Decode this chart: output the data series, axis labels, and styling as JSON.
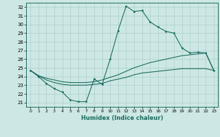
{
  "xlabel": "Humidex (Indice chaleur)",
  "ylabel": "",
  "xlim": [
    -0.5,
    23.5
  ],
  "ylim": [
    20.5,
    32.5
  ],
  "yticks": [
    21,
    22,
    23,
    24,
    25,
    26,
    27,
    28,
    29,
    30,
    31,
    32
  ],
  "xticks": [
    0,
    1,
    2,
    3,
    4,
    5,
    6,
    7,
    8,
    9,
    10,
    11,
    12,
    13,
    14,
    15,
    16,
    17,
    18,
    19,
    20,
    21,
    22,
    23
  ],
  "background_color": "#cde8e4",
  "grid_color": "#aacccc",
  "line_color": "#1a6b5e",
  "line1_x": [
    0,
    1,
    2,
    3,
    4,
    5,
    6,
    7,
    8,
    9,
    10,
    11,
    12,
    13,
    14,
    15,
    16,
    17,
    18,
    19,
    20,
    21,
    22,
    23
  ],
  "line1_y": [
    24.7,
    24.0,
    23.2,
    22.6,
    22.2,
    21.3,
    21.1,
    21.1,
    23.7,
    23.1,
    26.0,
    29.3,
    32.1,
    31.5,
    31.6,
    30.3,
    29.7,
    29.2,
    29.0,
    27.3,
    26.7,
    26.8,
    26.7,
    24.7
  ],
  "line2_x": [
    0,
    1,
    2,
    3,
    4,
    5,
    6,
    7,
    8,
    9,
    10,
    11,
    12,
    13,
    14,
    15,
    16,
    17,
    18,
    19,
    20,
    21,
    22,
    23
  ],
  "line2_y": [
    24.7,
    24.1,
    23.8,
    23.6,
    23.4,
    23.3,
    23.3,
    23.3,
    23.4,
    23.6,
    23.9,
    24.2,
    24.6,
    25.0,
    25.3,
    25.6,
    25.8,
    26.0,
    26.2,
    26.4,
    26.5,
    26.6,
    26.7,
    24.7
  ],
  "line3_x": [
    0,
    1,
    2,
    3,
    4,
    5,
    6,
    7,
    8,
    9,
    10,
    11,
    12,
    13,
    14,
    15,
    16,
    17,
    18,
    19,
    20,
    21,
    22,
    23
  ],
  "line3_y": [
    24.7,
    24.1,
    23.6,
    23.3,
    23.1,
    23.0,
    23.0,
    23.0,
    23.1,
    23.2,
    23.5,
    23.7,
    23.9,
    24.2,
    24.4,
    24.5,
    24.6,
    24.7,
    24.8,
    24.9,
    24.9,
    24.9,
    24.9,
    24.7
  ]
}
